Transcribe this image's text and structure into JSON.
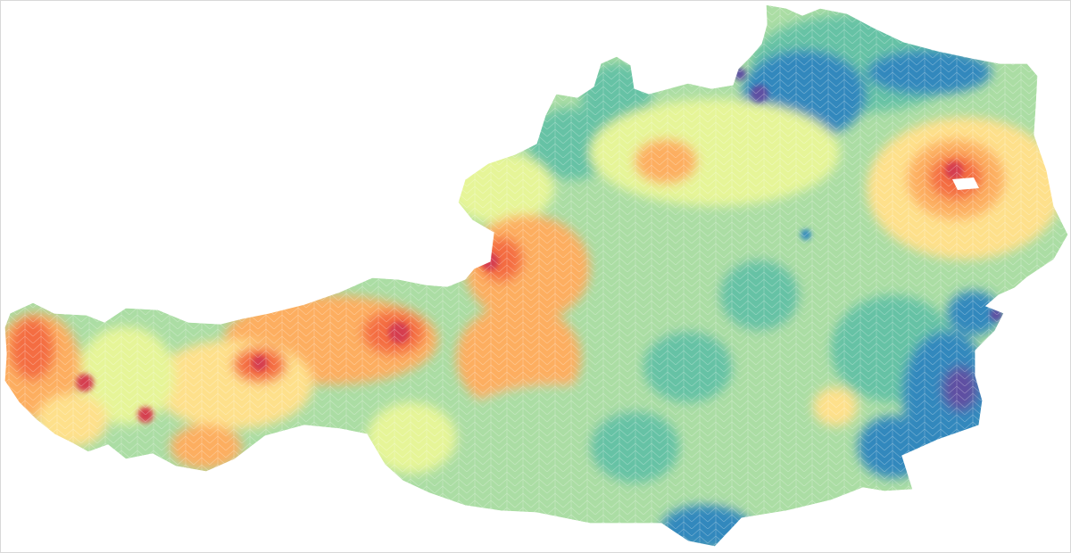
{
  "map": {
    "colors": {
      "background": "#ffffff",
      "frame_border": "#d9d9d9",
      "border_stroke": "#ffffff"
    },
    "palette": [
      "#5e4fa2",
      "#3288bd",
      "#66c2a5",
      "#abdda4",
      "#e6f598",
      "#fee08b",
      "#fdae61",
      "#f46d43",
      "#d53e4f",
      "#9e0142"
    ],
    "legend": null
  }
}
